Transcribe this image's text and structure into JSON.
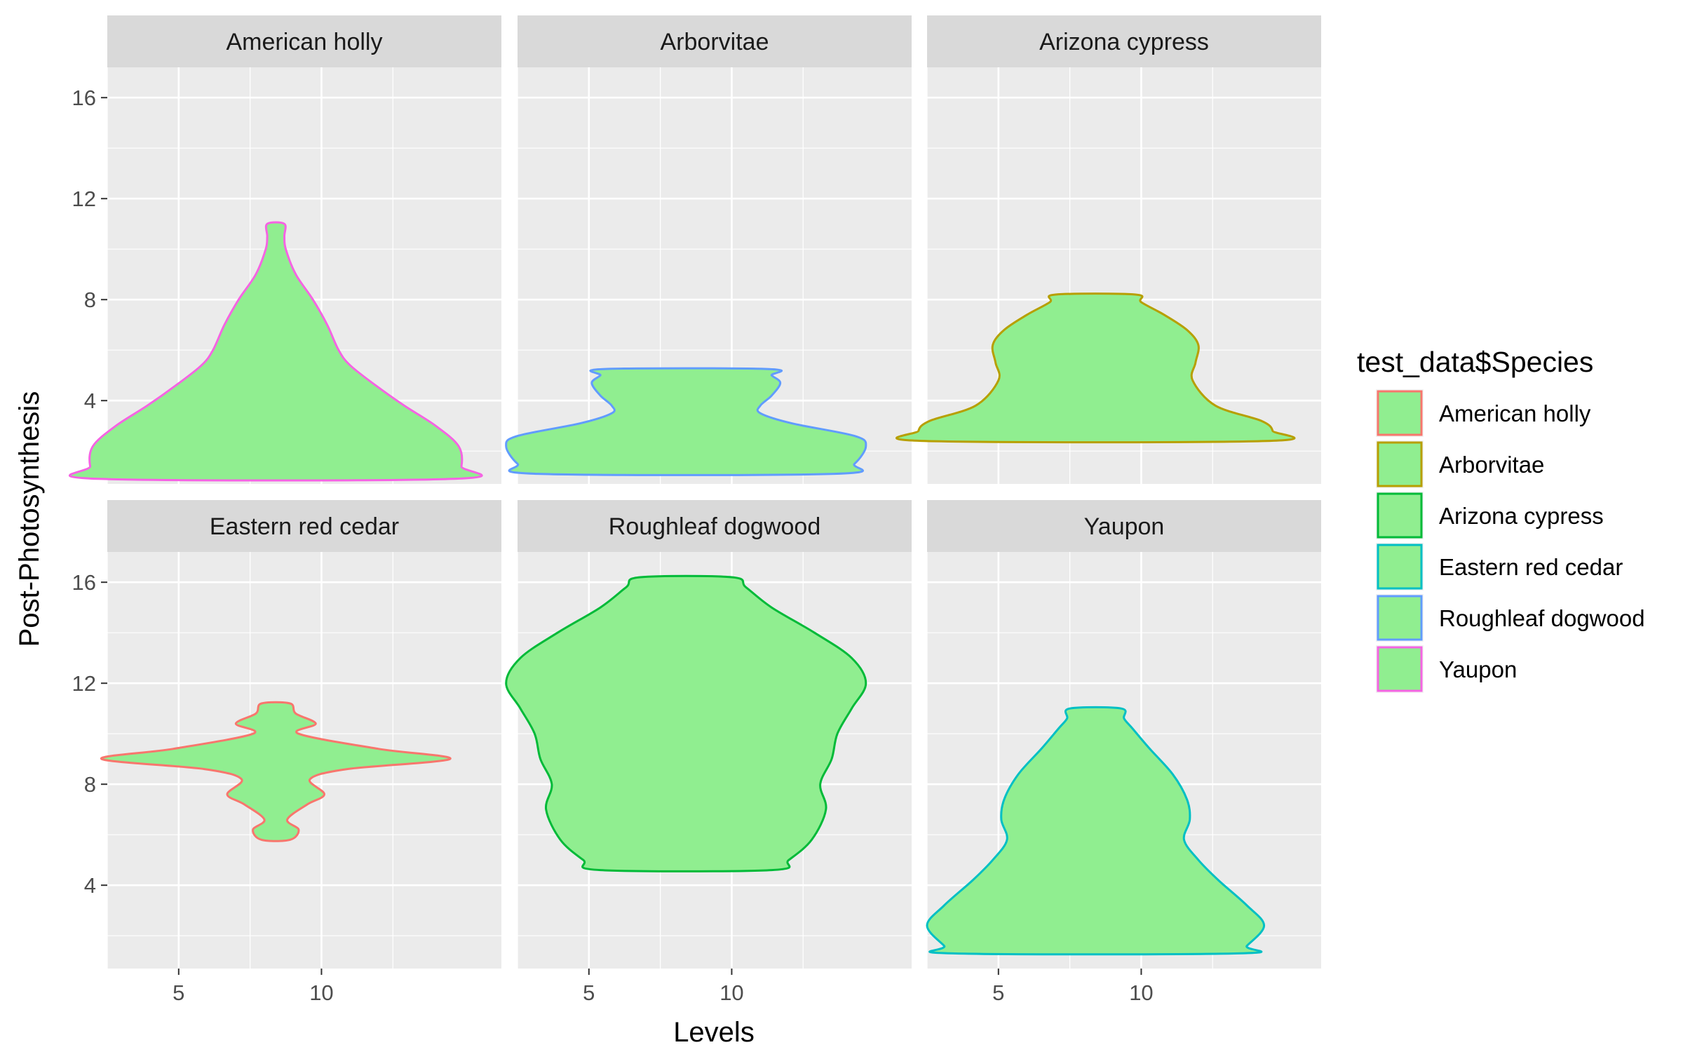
{
  "chart_data": {
    "type": "violin",
    "facet_titles": [
      "American holly",
      "Arborvitae",
      "Arizona cypress",
      "Eastern red cedar",
      "Roughleaf dogwood",
      "Yaupon"
    ],
    "xlabel": "Levels",
    "ylabel": "Post-Photosynthesis",
    "xlim": [
      2.5,
      16.3
    ],
    "ylim": [
      0.7,
      17.2
    ],
    "x_ticks": [
      5,
      10
    ],
    "x_tick_labels": [
      "5",
      "10"
    ],
    "y_ticks": [
      4,
      8,
      12,
      16
    ],
    "y_tick_labels": [
      "4",
      "8",
      "12",
      "16"
    ],
    "grid": true,
    "legend": {
      "title": "test_data$Species",
      "position": "right",
      "fill": "#90EE90",
      "entries": [
        {
          "label": "American holly",
          "color": "#F8766D"
        },
        {
          "label": "Arborvitae",
          "color": "#B79F00"
        },
        {
          "label": "Arizona cypress",
          "color": "#00BA38"
        },
        {
          "label": "Eastern red cedar",
          "color": "#00BFC4"
        },
        {
          "label": "Roughleaf dogwood",
          "color": "#619CFF"
        },
        {
          "label": "Yaupon",
          "color": "#F564E3"
        }
      ]
    },
    "fill_color": "#90EE90",
    "center_x": 8.4,
    "violins": [
      {
        "panel": "American holly",
        "outline_color": "#F564E3",
        "profile": [
          [
            0.9,
            6.2
          ],
          [
            1.4,
            6.5
          ],
          [
            2.2,
            6.4
          ],
          [
            3.0,
            5.6
          ],
          [
            3.8,
            4.5
          ],
          [
            4.6,
            3.5
          ],
          [
            5.4,
            2.6
          ],
          [
            6.0,
            2.2
          ],
          [
            7.0,
            1.8
          ],
          [
            8.0,
            1.3
          ],
          [
            9.0,
            0.7
          ],
          [
            10.0,
            0.35
          ],
          [
            10.5,
            0.3
          ],
          [
            11.0,
            0.3
          ]
        ]
      },
      {
        "panel": "Arborvitae",
        "outline_color": "#619CFF",
        "profile": [
          [
            1.1,
            5.2
          ],
          [
            1.5,
            5.9
          ],
          [
            2.2,
            6.3
          ],
          [
            2.6,
            5.9
          ],
          [
            3.1,
            3.7
          ],
          [
            3.5,
            2.6
          ],
          [
            3.8,
            2.6
          ],
          [
            4.2,
            3.0
          ],
          [
            4.7,
            3.3
          ],
          [
            5.0,
            3.0
          ],
          [
            5.25,
            2.9
          ]
        ]
      },
      {
        "panel": "Arizona cypress",
        "outline_color": "#B79F00",
        "profile": [
          [
            2.4,
            6.0
          ],
          [
            2.8,
            6.2
          ],
          [
            3.2,
            5.8
          ],
          [
            3.8,
            4.2
          ],
          [
            4.8,
            3.4
          ],
          [
            5.5,
            3.5
          ],
          [
            6.2,
            3.6
          ],
          [
            6.8,
            3.2
          ],
          [
            7.4,
            2.4
          ],
          [
            7.9,
            1.6
          ],
          [
            8.2,
            1.4
          ]
        ]
      },
      {
        "panel": "Eastern red cedar",
        "outline_color": "#F8766D",
        "profile": [
          [
            5.8,
            0.5
          ],
          [
            6.2,
            0.8
          ],
          [
            6.6,
            0.4
          ],
          [
            7.2,
            1.1
          ],
          [
            7.6,
            1.7
          ],
          [
            8.2,
            1.2
          ],
          [
            8.6,
            2.5
          ],
          [
            9.0,
            6.1
          ],
          [
            9.4,
            3.6
          ],
          [
            10.0,
            0.8
          ],
          [
            10.4,
            1.4
          ],
          [
            10.8,
            0.7
          ],
          [
            11.2,
            0.5
          ]
        ]
      },
      {
        "panel": "Roughleaf dogwood",
        "outline_color": "#00BA38",
        "profile": [
          [
            4.6,
            3.0
          ],
          [
            5.0,
            3.6
          ],
          [
            5.8,
            4.4
          ],
          [
            7.0,
            4.9
          ],
          [
            8.0,
            4.7
          ],
          [
            9.0,
            5.1
          ],
          [
            10.0,
            5.3
          ],
          [
            11.0,
            5.8
          ],
          [
            12.0,
            6.3
          ],
          [
            13.0,
            5.8
          ],
          [
            14.0,
            4.5
          ],
          [
            15.0,
            3.0
          ],
          [
            15.8,
            2.1
          ],
          [
            16.2,
            1.6
          ]
        ]
      },
      {
        "panel": "Yaupon",
        "outline_color": "#00BFC4",
        "profile": [
          [
            1.3,
            5.0
          ],
          [
            1.6,
            5.3
          ],
          [
            2.4,
            5.9
          ],
          [
            3.2,
            5.3
          ],
          [
            4.2,
            4.3
          ],
          [
            5.0,
            3.6
          ],
          [
            5.8,
            3.1
          ],
          [
            6.6,
            3.3
          ],
          [
            7.4,
            3.2
          ],
          [
            8.4,
            2.7
          ],
          [
            9.4,
            1.9
          ],
          [
            10.2,
            1.3
          ],
          [
            10.6,
            1.0
          ],
          [
            11.0,
            0.9
          ]
        ]
      }
    ]
  }
}
